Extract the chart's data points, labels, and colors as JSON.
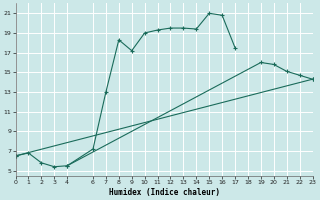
{
  "xlabel": "Humidex (Indice chaleur)",
  "bg_color": "#cce8e8",
  "grid_color": "#b8d8d8",
  "line_color": "#1a6b5a",
  "curve1_x": [
    0,
    1,
    2,
    3,
    4,
    6,
    7,
    8,
    9,
    10,
    11,
    12,
    13,
    14,
    15,
    16,
    17
  ],
  "curve1_y": [
    6.5,
    6.8,
    5.8,
    5.4,
    5.5,
    7.2,
    13.0,
    18.3,
    17.2,
    19.0,
    19.3,
    19.5,
    19.5,
    19.4,
    21.0,
    20.8,
    17.5
  ],
  "curve2_x": [
    4,
    19,
    20,
    21,
    22,
    23
  ],
  "curve2_y": [
    5.5,
    16.0,
    15.8,
    15.1,
    14.7,
    14.3
  ],
  "curve3_x": [
    0,
    23
  ],
  "curve3_y": [
    6.5,
    14.3
  ],
  "xlim": [
    0,
    23
  ],
  "ylim": [
    4.5,
    22.0
  ],
  "yticks": [
    5,
    7,
    9,
    11,
    13,
    15,
    17,
    19,
    21
  ],
  "xticks": [
    0,
    1,
    2,
    3,
    4,
    6,
    7,
    8,
    9,
    10,
    11,
    12,
    13,
    14,
    15,
    16,
    17,
    18,
    19,
    20,
    21,
    22,
    23
  ]
}
